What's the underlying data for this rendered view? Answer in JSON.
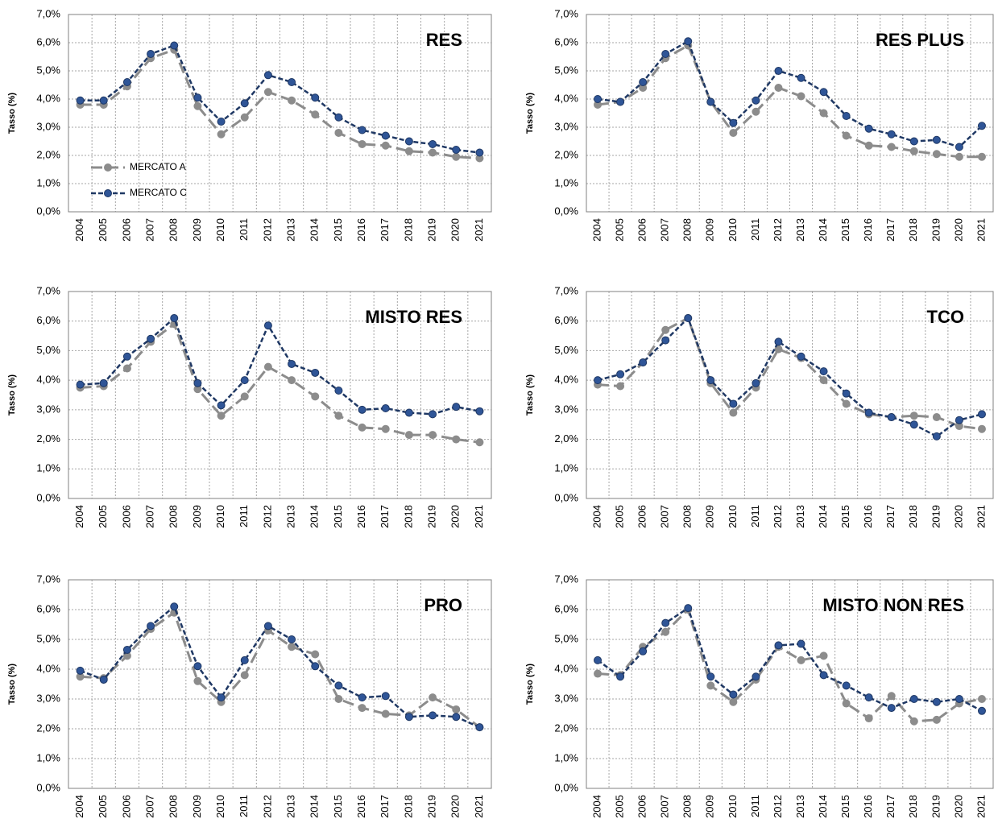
{
  "chart_data": [
    {
      "type": "line",
      "title": "RES",
      "y_label": "Tasso (%)",
      "legend": true,
      "categories": [
        "2004",
        "2005",
        "2006",
        "2007",
        "2008",
        "2009",
        "2010",
        "2011",
        "2012",
        "2013",
        "2014",
        "2015",
        "2016",
        "2017",
        "2018",
        "2019",
        "2020",
        "2021"
      ],
      "series": [
        {
          "name": "MERCATO A",
          "color": "#8c8c8c",
          "values": [
            3.8,
            3.8,
            4.45,
            5.45,
            5.75,
            3.75,
            2.75,
            3.35,
            4.25,
            3.95,
            3.45,
            2.8,
            2.4,
            2.35,
            2.15,
            2.1,
            1.95,
            1.9
          ]
        },
        {
          "name": "MERCATO C",
          "color": "#1f3864",
          "values": [
            3.95,
            3.95,
            4.6,
            5.6,
            5.9,
            4.05,
            3.2,
            3.85,
            4.85,
            4.6,
            4.05,
            3.35,
            2.9,
            2.7,
            2.5,
            2.4,
            2.2,
            2.1
          ]
        }
      ],
      "ylim": [
        0,
        7
      ],
      "yticks": [
        {
          "value": 0,
          "label": "0,0%"
        },
        {
          "value": 1,
          "label": "1,0%"
        },
        {
          "value": 2,
          "label": "2,0%"
        },
        {
          "value": 3,
          "label": "3,0%"
        },
        {
          "value": 4,
          "label": "4,0%"
        },
        {
          "value": 5,
          "label": "5,0%"
        },
        {
          "value": 6,
          "label": "6,0%"
        },
        {
          "value": 7,
          "label": "7,0%"
        }
      ],
      "grid": true
    },
    {
      "type": "line",
      "title": "RES PLUS",
      "y_label": "Tasso (%)",
      "categories": [
        "2004",
        "2005",
        "2006",
        "2007",
        "2008",
        "2009",
        "2010",
        "2011",
        "2012",
        "2013",
        "2014",
        "2015",
        "2016",
        "2017",
        "2018",
        "2019",
        "2020",
        "2021"
      ],
      "series": [
        {
          "color": "#8c8c8c",
          "values": [
            3.8,
            3.9,
            4.4,
            5.45,
            5.9,
            3.9,
            2.8,
            3.55,
            4.4,
            4.1,
            3.5,
            2.7,
            2.35,
            2.3,
            2.15,
            2.05,
            1.95,
            1.95
          ]
        },
        {
          "color": "#1f3864",
          "values": [
            4.0,
            3.9,
            4.6,
            5.6,
            6.05,
            3.9,
            3.15,
            3.95,
            5.0,
            4.75,
            4.25,
            3.4,
            2.95,
            2.75,
            2.5,
            2.55,
            2.3,
            3.05
          ]
        }
      ],
      "ylim": [
        0,
        7
      ],
      "yticks": [
        {
          "value": 0,
          "label": "0,0%"
        },
        {
          "value": 1,
          "label": "1,0%"
        },
        {
          "value": 2,
          "label": "2,0%"
        },
        {
          "value": 3,
          "label": "3,0%"
        },
        {
          "value": 4,
          "label": "4,0%"
        },
        {
          "value": 5,
          "label": "5,0%"
        },
        {
          "value": 6,
          "label": "6,0%"
        },
        {
          "value": 7,
          "label": "7,0%"
        }
      ],
      "grid": true
    },
    {
      "type": "line",
      "title": "MISTO RES",
      "y_label": "Tasso (%)",
      "categories": [
        "2004",
        "2005",
        "2006",
        "2007",
        "2008",
        "2009",
        "2010",
        "2011",
        "2012",
        "2013",
        "2014",
        "2015",
        "2016",
        "2017",
        "2018",
        "2019",
        "2020",
        "2021"
      ],
      "series": [
        {
          "color": "#8c8c8c",
          "values": [
            3.75,
            3.8,
            4.4,
            5.3,
            5.9,
            3.7,
            2.8,
            3.45,
            4.45,
            4.0,
            3.45,
            2.8,
            2.4,
            2.35,
            2.15,
            2.15,
            2.0,
            1.9
          ]
        },
        {
          "color": "#1f3864",
          "values": [
            3.85,
            3.9,
            4.8,
            5.4,
            6.1,
            3.9,
            3.15,
            4.0,
            5.85,
            4.55,
            4.25,
            3.65,
            3.0,
            3.05,
            2.9,
            2.85,
            3.1,
            2.95
          ]
        }
      ],
      "ylim": [
        0,
        7
      ],
      "yticks": [
        {
          "value": 0,
          "label": "0,0%"
        },
        {
          "value": 1,
          "label": "1,0%"
        },
        {
          "value": 2,
          "label": "2,0%"
        },
        {
          "value": 3,
          "label": "3,0%"
        },
        {
          "value": 4,
          "label": "4,0%"
        },
        {
          "value": 5,
          "label": "5,0%"
        },
        {
          "value": 6,
          "label": "6,0%"
        },
        {
          "value": 7,
          "label": "7,0%"
        }
      ],
      "grid": true
    },
    {
      "type": "line",
      "title": "TCO",
      "y_label": "Tasso (%)",
      "categories": [
        "2004",
        "2005",
        "2006",
        "2007",
        "2008",
        "2009",
        "2010",
        "2011",
        "2012",
        "2013",
        "2014",
        "2015",
        "2016",
        "2017",
        "2018",
        "2019",
        "2020",
        "2021"
      ],
      "series": [
        {
          "color": "#8c8c8c",
          "values": [
            3.85,
            3.8,
            4.6,
            5.7,
            6.1,
            3.9,
            2.9,
            3.75,
            5.05,
            4.75,
            4.0,
            3.2,
            2.85,
            2.75,
            2.8,
            2.75,
            2.45,
            2.35
          ]
        },
        {
          "color": "#1f3864",
          "values": [
            4.0,
            4.2,
            4.6,
            5.35,
            6.1,
            4.0,
            3.2,
            3.9,
            5.3,
            4.8,
            4.3,
            3.55,
            2.9,
            2.75,
            2.5,
            2.1,
            2.65,
            2.85
          ]
        }
      ],
      "ylim": [
        0,
        7
      ],
      "yticks": [
        {
          "value": 0,
          "label": "0,0%"
        },
        {
          "value": 1,
          "label": "1,0%"
        },
        {
          "value": 2,
          "label": "2,0%"
        },
        {
          "value": 3,
          "label": "3,0%"
        },
        {
          "value": 4,
          "label": "4,0%"
        },
        {
          "value": 5,
          "label": "5,0%"
        },
        {
          "value": 6,
          "label": "6,0%"
        },
        {
          "value": 7,
          "label": "7,0%"
        }
      ],
      "grid": true
    },
    {
      "type": "line",
      "title": "PRO",
      "y_label": "Tasso (%)",
      "categories": [
        "2004",
        "2005",
        "2006",
        "2007",
        "2008",
        "2009",
        "2010",
        "2011",
        "2012",
        "2013",
        "2014",
        "2015",
        "2016",
        "2017",
        "2018",
        "2019",
        "2020",
        "2021"
      ],
      "series": [
        {
          "color": "#8c8c8c",
          "values": [
            3.75,
            3.7,
            4.45,
            5.35,
            5.9,
            3.6,
            2.9,
            3.8,
            5.3,
            4.75,
            4.5,
            3.0,
            2.7,
            2.5,
            2.45,
            3.05,
            2.65,
            2.05
          ]
        },
        {
          "color": "#1f3864",
          "values": [
            3.95,
            3.65,
            4.65,
            5.45,
            6.1,
            4.1,
            3.05,
            4.3,
            5.45,
            5.0,
            4.1,
            3.45,
            3.05,
            3.1,
            2.4,
            2.45,
            2.4,
            2.05
          ]
        }
      ],
      "ylim": [
        0,
        7
      ],
      "yticks": [
        {
          "value": 0,
          "label": "0,0%"
        },
        {
          "value": 1,
          "label": "1,0%"
        },
        {
          "value": 2,
          "label": "2,0%"
        },
        {
          "value": 3,
          "label": "3,0%"
        },
        {
          "value": 4,
          "label": "4,0%"
        },
        {
          "value": 5,
          "label": "5,0%"
        },
        {
          "value": 6,
          "label": "6,0%"
        },
        {
          "value": 7,
          "label": "7,0%"
        }
      ],
      "grid": true
    },
    {
      "type": "line",
      "title": "MISTO NON RES",
      "y_label": "Tasso (%)",
      "categories": [
        "2004",
        "2005",
        "2006",
        "2007",
        "2008",
        "2009",
        "2010",
        "2011",
        "2012",
        "2013",
        "2014",
        "2015",
        "2016",
        "2017",
        "2018",
        "2019",
        "2020",
        "2021"
      ],
      "series": [
        {
          "color": "#8c8c8c",
          "values": [
            3.85,
            3.8,
            4.75,
            5.25,
            6.0,
            3.45,
            2.9,
            3.65,
            4.75,
            4.3,
            4.45,
            2.85,
            2.35,
            3.1,
            2.25,
            2.3,
            2.85,
            3.0
          ]
        },
        {
          "color": "#1f3864",
          "values": [
            4.3,
            3.75,
            4.6,
            5.55,
            6.05,
            3.75,
            3.15,
            3.75,
            4.8,
            4.85,
            3.8,
            3.45,
            3.05,
            2.7,
            3.0,
            2.9,
            3.0,
            2.6
          ]
        }
      ],
      "ylim": [
        0,
        7
      ],
      "yticks": [
        {
          "value": 0,
          "label": "0,0%"
        },
        {
          "value": 1,
          "label": "1,0%"
        },
        {
          "value": 2,
          "label": "2,0%"
        },
        {
          "value": 3,
          "label": "3,0%"
        },
        {
          "value": 4,
          "label": "4,0%"
        },
        {
          "value": 5,
          "label": "5,0%"
        },
        {
          "value": 6,
          "label": "6,0%"
        },
        {
          "value": 7,
          "label": "7,0%"
        }
      ],
      "grid": true
    }
  ]
}
